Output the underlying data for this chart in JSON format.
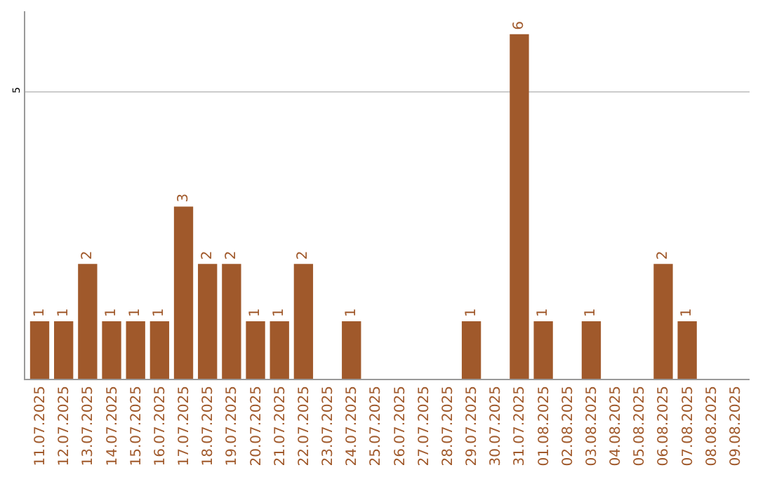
{
  "chart_data": {
    "type": "bar",
    "categories": [
      "11.07.2025",
      "12.07.2025",
      "13.07.2025",
      "14.07.2025",
      "15.07.2025",
      "16.07.2025",
      "17.07.2025",
      "18.07.2025",
      "19.07.2025",
      "20.07.2025",
      "21.07.2025",
      "22.07.2025",
      "23.07.2025",
      "24.07.2025",
      "25.07.2025",
      "26.07.2025",
      "27.07.2025",
      "28.07.2025",
      "29.07.2025",
      "30.07.2025",
      "31.07.2025",
      "01.08.2025",
      "02.08.2025",
      "03.08.2025",
      "04.08.2025",
      "05.08.2025",
      "06.08.2025",
      "07.08.2025",
      "08.08.2025",
      "09.08.2025"
    ],
    "values": [
      1,
      1,
      2,
      1,
      1,
      1,
      3,
      2,
      2,
      1,
      1,
      2,
      0,
      1,
      0,
      0,
      0,
      0,
      1,
      0,
      6,
      1,
      0,
      1,
      0,
      0,
      2,
      1,
      0,
      0
    ],
    "value_labels": [
      "1",
      "1",
      "2",
      "1",
      "1",
      "1",
      "3",
      "2",
      "2",
      "1",
      "1",
      "2",
      null,
      "1",
      null,
      null,
      null,
      null,
      "1",
      null,
      "6",
      "1",
      null,
      "1",
      null,
      null,
      "2",
      "1",
      null,
      null
    ],
    "color": "#a0592b",
    "ylim": [
      0,
      6.4
    ],
    "yticks": [
      5
    ],
    "grid": "y"
  }
}
